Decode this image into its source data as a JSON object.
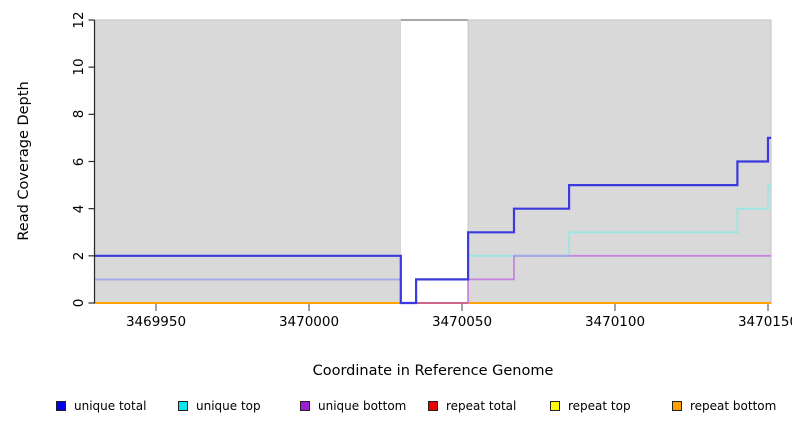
{
  "figure": {
    "x_axis": {
      "label": "Coordinate in Reference Genome",
      "ticks": [
        3469950,
        3470000,
        3470050,
        3470100,
        3470150
      ],
      "range": [
        3469930,
        3470151
      ]
    },
    "y_axis": {
      "label": "Read Coverage Depth",
      "ticks": [
        0,
        2,
        4,
        6,
        8,
        10,
        12
      ],
      "range": [
        0,
        12
      ]
    }
  },
  "chart_data": {
    "type": "line",
    "subtype": "step-coverage",
    "xlabel": "Coordinate in Reference Genome",
    "ylabel": "Read Coverage Depth",
    "xlim": [
      3469930,
      3470151
    ],
    "ylim": [
      0,
      12
    ],
    "grid": false,
    "background_regions": [
      {
        "kind": "shaded",
        "x1": 3469930,
        "x2": 3470030,
        "color": "#d9d9d9"
      },
      {
        "kind": "gap-white",
        "x1": 3470030,
        "x2": 3470052,
        "color": "#ffffff",
        "top_edge_color": "#8c8c8c"
      },
      {
        "kind": "shaded",
        "x1": 3470052,
        "x2": 3470151,
        "color": "#d9d9d9"
      }
    ],
    "series": [
      {
        "name": "repeat total",
        "legend_color": "#ee0000",
        "line_color": "#ee0000",
        "steps": [
          [
            3469930,
            3470151,
            0
          ]
        ]
      },
      {
        "name": "repeat top",
        "legend_color": "#fdfd00",
        "line_color": "#fdfd00",
        "steps": [
          [
            3469930,
            3470151,
            0
          ]
        ]
      },
      {
        "name": "repeat bottom",
        "legend_color": "#ffa000",
        "line_color": "#ff9c00",
        "steps": [
          [
            3469930,
            3470151,
            0
          ]
        ]
      },
      {
        "name": "unique top",
        "legend_color": "#00e5ee",
        "line_color": "#9ae6e4",
        "steps": [
          [
            3469930,
            3470030,
            1
          ],
          [
            3470030,
            3470035,
            0
          ],
          [
            3470035,
            3470052,
            1
          ],
          [
            3470052,
            3470085,
            2
          ],
          [
            3470085,
            3470140,
            3
          ],
          [
            3470140,
            3470150,
            4
          ],
          [
            3470150,
            3470151,
            5
          ]
        ]
      },
      {
        "name": "unique bottom",
        "legend_color": "#9c1fd4",
        "line_color": "#c685dc",
        "steps": [
          [
            3469930,
            3470030,
            1
          ],
          [
            3470030,
            3470052,
            0
          ],
          [
            3470052,
            3470067,
            1
          ],
          [
            3470067,
            3470151,
            2
          ]
        ]
      },
      {
        "name": "unique total",
        "legend_color": "#0000f0",
        "line_color": "#3a3ade",
        "steps": [
          [
            3469930,
            3470030,
            2
          ],
          [
            3470030,
            3470035,
            0
          ],
          [
            3470035,
            3470052,
            1
          ],
          [
            3470052,
            3470067,
            3
          ],
          [
            3470067,
            3470085,
            4
          ],
          [
            3470085,
            3470140,
            5
          ],
          [
            3470140,
            3470150,
            6
          ],
          [
            3470150,
            3470151,
            7
          ]
        ]
      }
    ],
    "overlap_segments": [
      {
        "y": 1,
        "x1": 3469930,
        "x2": 3470030,
        "color": "#a2a9e6"
      },
      {
        "y": 2,
        "x1": 3470067,
        "x2": 3470085,
        "color": "#a2a9e6"
      },
      {
        "y": 0,
        "x1": 3470030,
        "x2": 3470052,
        "color": "#d06080"
      }
    ]
  },
  "legend": {
    "items": [
      {
        "label": "unique total",
        "color": "#0000f0"
      },
      {
        "label": "unique top",
        "color": "#00e5ee"
      },
      {
        "label": "unique bottom",
        "color": "#9c1fd4"
      },
      {
        "label": "repeat total",
        "color": "#ee0000"
      },
      {
        "label": "repeat top",
        "color": "#fdfd00"
      },
      {
        "label": "repeat bottom",
        "color": "#ffa000"
      }
    ]
  }
}
